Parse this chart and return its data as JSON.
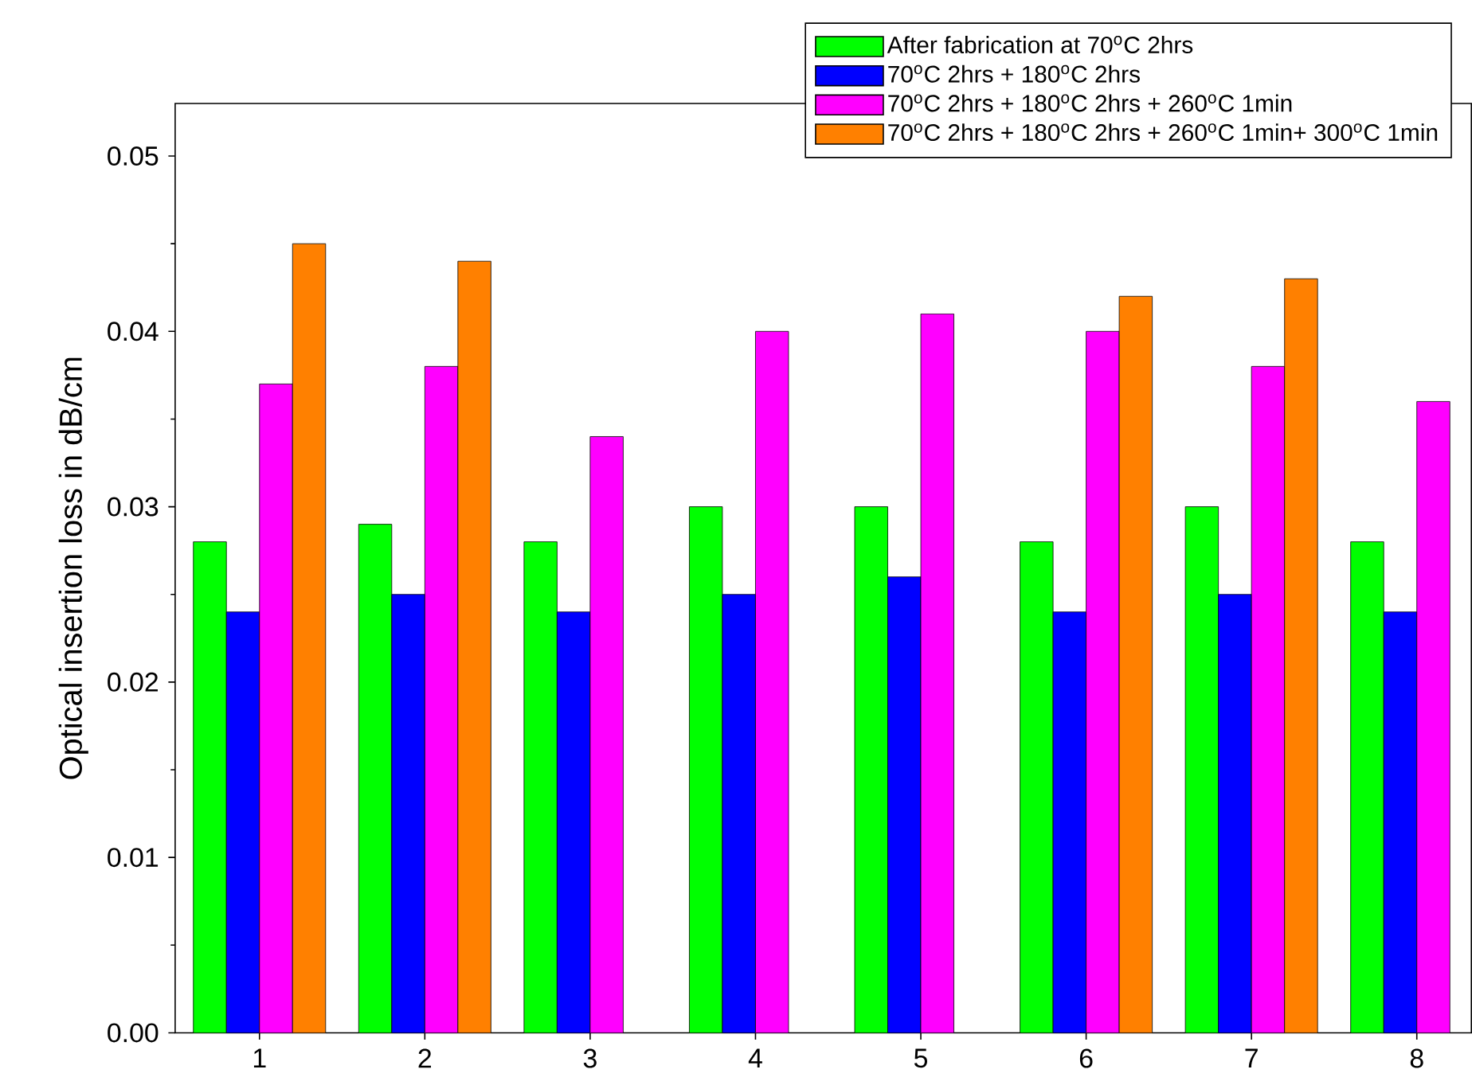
{
  "chart_data": {
    "type": "bar",
    "ylabel": "Optical insertion loss in dB/cm",
    "categories": [
      "1",
      "2",
      "3",
      "4",
      "5",
      "6",
      "7",
      "8"
    ],
    "series": [
      {
        "name": "After fabrication at 70$^{o}$C 2hrs",
        "color": "#00ff00",
        "values": [
          0.028,
          0.029,
          0.028,
          0.03,
          0.03,
          0.028,
          0.03,
          0.028
        ]
      },
      {
        "name": "70$^{o}$C 2hrs + 180$^{o}$C 2hrs",
        "color": "#0000ff",
        "values": [
          0.024,
          0.025,
          0.024,
          0.025,
          0.026,
          0.024,
          0.025,
          0.024
        ]
      },
      {
        "name": "70$^{o}$C 2hrs + 180$^{o}$C 2hrs + 260$^{o}$C 1min",
        "color": "#ff00ff",
        "values": [
          0.037,
          0.038,
          0.034,
          0.04,
          0.041,
          0.04,
          0.038,
          0.036
        ]
      },
      {
        "name": "70$^{o}$C 2hrs + 180$^{o}$C 2hrs + 260$^{o}$C 1min+ 300$^{o}$C 1min",
        "color": "#ff8000",
        "values": [
          0.045,
          0.044,
          null,
          null,
          null,
          0.042,
          0.043,
          null
        ]
      }
    ],
    "ylim": [
      0,
      0.053
    ],
    "yticks": [
      {
        "value": 0,
        "label": "0.00"
      },
      0.01,
      0.02,
      0.03,
      0.04,
      0.05
    ],
    "grid": false,
    "legend": "top right"
  }
}
